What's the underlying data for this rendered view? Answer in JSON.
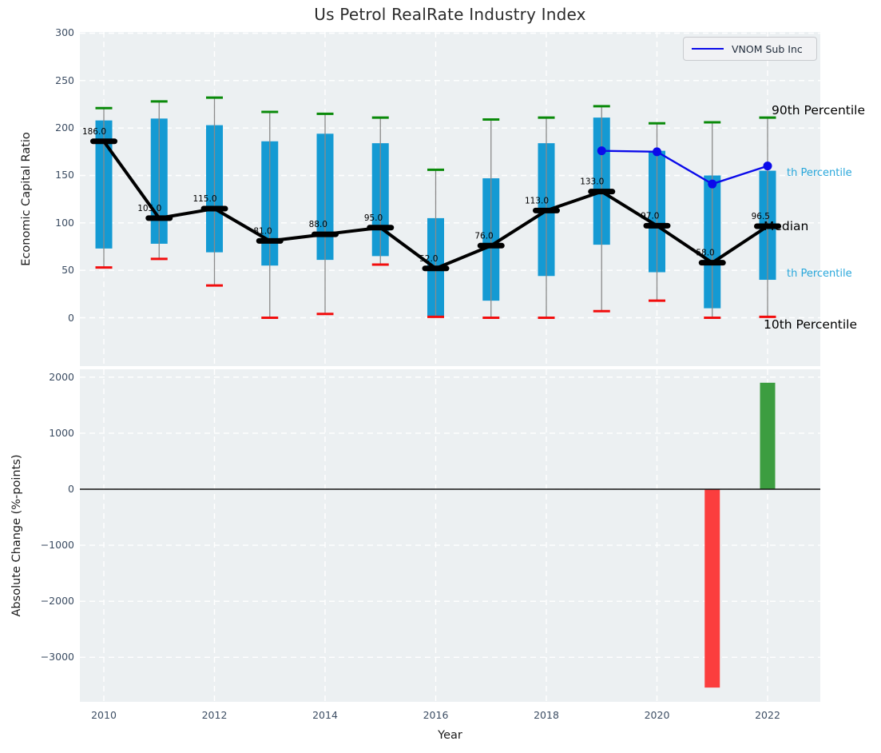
{
  "title": "Us Petrol RealRate Industry Index",
  "legend": {
    "label": "VNOM Sub Inc"
  },
  "colors": {
    "axes_background": "#ecf0f2",
    "grid": "#ffffff",
    "box": "#149ad3",
    "whisker": "#8a8a8a",
    "p90_cap": "#0a8a0a",
    "p10_cap": "#f20d0d",
    "median": "#000000",
    "vnom_line": "#0b0bea",
    "change_positive": "#3c9d40",
    "change_negative": "#fb3e3e",
    "tick_label": "#3c4d63",
    "annotation_cyan": "#29a7db"
  },
  "annotations": [
    {
      "text": "90th Percentile",
      "color": "#000000",
      "value": 218,
      "size": "large"
    },
    {
      "text": "th Percentile",
      "color": "#29a7db",
      "value": 152,
      "size": "small"
    },
    {
      "text": "Median",
      "color": "#000000",
      "value": 96,
      "size": "large"
    },
    {
      "text": "th Percentile",
      "color": "#29a7db",
      "value": 46,
      "size": "small"
    },
    {
      "text": "10th Percentile",
      "color": "#000000",
      "value": -8,
      "size": "large"
    }
  ],
  "chart_data": [
    {
      "type": "box",
      "title": "Us Petrol RealRate Industry Index",
      "ylabel": "Economic Capital Ratio",
      "ylim": [
        -51,
        301
      ],
      "yticks": [
        0,
        50,
        100,
        150,
        200,
        250,
        300
      ],
      "grid": true,
      "legend_position": "upper right",
      "years": [
        2010,
        2011,
        2012,
        2013,
        2014,
        2015,
        2016,
        2017,
        2018,
        2019,
        2020,
        2021,
        2022
      ],
      "p10": [
        53,
        62,
        34,
        0,
        4,
        56,
        1,
        0,
        0,
        7,
        18,
        0,
        1
      ],
      "p25": [
        73,
        78,
        69,
        55,
        61,
        65,
        0,
        18,
        44,
        77,
        48,
        10,
        40
      ],
      "median": [
        186,
        105,
        115,
        81,
        88,
        95,
        52,
        76,
        113,
        133,
        97,
        58,
        96.5
      ],
      "p75": [
        208,
        210,
        203,
        186,
        194,
        184,
        105,
        147,
        184,
        211,
        176,
        150,
        155
      ],
      "p90": [
        221,
        228,
        232,
        217,
        215,
        211,
        156,
        209,
        211,
        223,
        205,
        206,
        211
      ],
      "median_labels": [
        "186.0",
        "105.0",
        "115.0",
        "81.0",
        "88.0",
        "95.0",
        "52.0",
        "76.0",
        "113.0",
        "133.0",
        "97.0",
        "58.0",
        "96.5"
      ],
      "series": [
        {
          "name": "VNOM Sub Inc",
          "years": [
            2019,
            2020,
            2021,
            2022
          ],
          "values": [
            176,
            175,
            141,
            160
          ]
        }
      ]
    },
    {
      "type": "bar",
      "ylabel": "Absolute Change (%-points)",
      "xlabel": "Year",
      "ylim": [
        -3810,
        2150
      ],
      "yticks": [
        2000,
        1000,
        0,
        -1000,
        -2000,
        -3000
      ],
      "xticks": [
        2010,
        2012,
        2014,
        2016,
        2018,
        2020,
        2022
      ],
      "grid": true,
      "bars": [
        {
          "year": 2021,
          "value": -3540,
          "color": "#fb3e3e"
        },
        {
          "year": 2022,
          "value": 1900,
          "color": "#3c9d40"
        }
      ]
    }
  ]
}
